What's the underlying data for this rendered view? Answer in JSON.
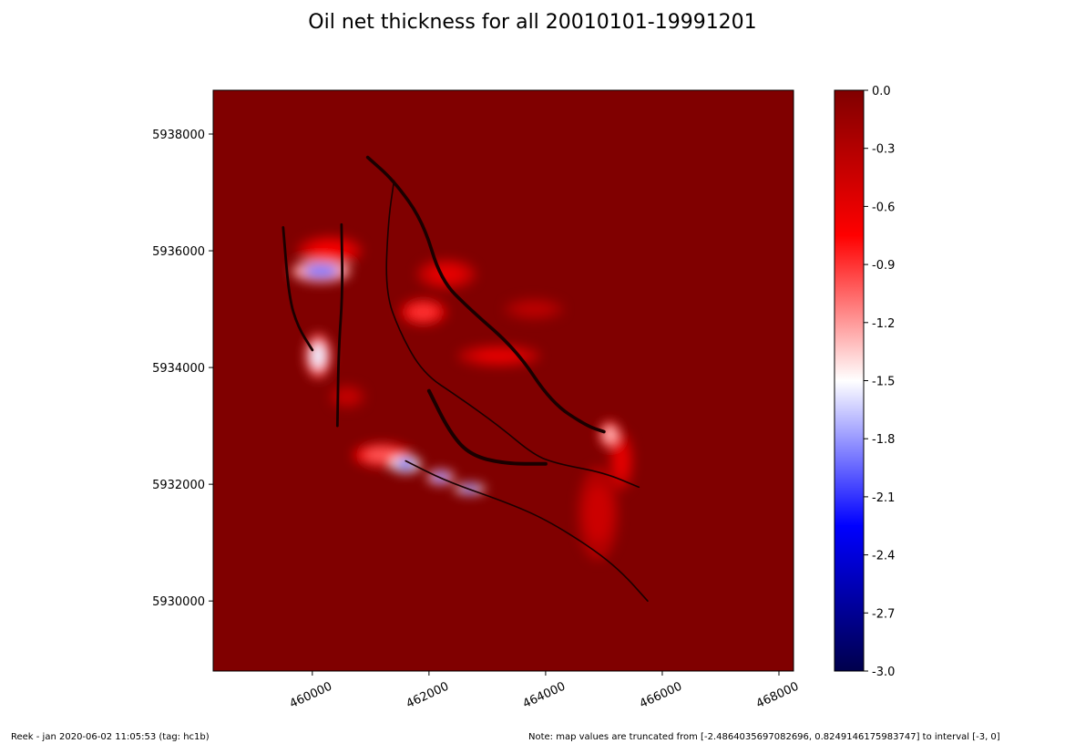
{
  "chart_data": {
    "type": "heatmap",
    "title": "Oil net thickness for all 20010101-19991201",
    "xlabel": "",
    "ylabel": "",
    "xlim": [
      458300,
      468250
    ],
    "ylim": [
      5928800,
      5938750
    ],
    "x_ticks": [
      "460000",
      "462000",
      "464000",
      "466000",
      "468000"
    ],
    "y_ticks": [
      "5938000",
      "5936000",
      "5934000",
      "5932000",
      "5930000"
    ],
    "colorbar": {
      "range": [
        -3.0,
        0.0
      ],
      "colormap": "seismic",
      "ticks": [
        "0.0",
        "-0.3",
        "-0.6",
        "-0.9",
        "-1.2",
        "-1.5",
        "-1.8",
        "-2.1",
        "-2.4",
        "-2.7",
        "-3.0"
      ],
      "colors": [
        "#00004c",
        "#0000ff",
        "#ffffff",
        "#ff0000",
        "#800000"
      ]
    },
    "background_value": 0.0,
    "anomalies": [
      {
        "x": 460150,
        "y": 5935650,
        "rx": 500,
        "ry": 190,
        "value": -1.9
      },
      {
        "x": 460100,
        "y": 5934200,
        "rx": 220,
        "ry": 380,
        "value": -1.55
      },
      {
        "x": 461600,
        "y": 5932340,
        "rx": 260,
        "ry": 140,
        "value": -2.3
      },
      {
        "x": 462200,
        "y": 5932120,
        "rx": 230,
        "ry": 120,
        "value": -2.05
      },
      {
        "x": 462700,
        "y": 5931920,
        "rx": 260,
        "ry": 90,
        "value": -2.2
      },
      {
        "x": 465100,
        "y": 5932850,
        "rx": 180,
        "ry": 230,
        "value": -1.3
      },
      {
        "x": 461900,
        "y": 5934950,
        "rx": 400,
        "ry": 220,
        "value": -0.9
      },
      {
        "x": 463200,
        "y": 5934200,
        "rx": 700,
        "ry": 180,
        "value": -0.6
      },
      {
        "x": 462300,
        "y": 5935600,
        "rx": 500,
        "ry": 250,
        "value": -0.6
      },
      {
        "x": 463800,
        "y": 5935000,
        "rx": 500,
        "ry": 180,
        "value": -0.35
      },
      {
        "x": 461200,
        "y": 5932500,
        "rx": 500,
        "ry": 200,
        "value": -1.0
      },
      {
        "x": 464900,
        "y": 5931500,
        "rx": 350,
        "ry": 800,
        "value": -0.45
      },
      {
        "x": 460600,
        "y": 5933500,
        "rx": 300,
        "ry": 200,
        "value": -0.4
      },
      {
        "x": 460300,
        "y": 5936000,
        "rx": 550,
        "ry": 250,
        "value": -0.7
      },
      {
        "x": 465300,
        "y": 5932400,
        "rx": 200,
        "ry": 500,
        "value": -0.6
      }
    ],
    "faults": [
      {
        "points": [
          [
            460950,
            5937600
          ],
          [
            461400,
            5937200
          ],
          [
            461900,
            5936500
          ],
          [
            462200,
            5935500
          ],
          [
            462700,
            5935000
          ],
          [
            463500,
            5934300
          ],
          [
            464100,
            5933400
          ],
          [
            464700,
            5933000
          ],
          [
            465000,
            5932900
          ]
        ],
        "width": 0.09
      },
      {
        "points": [
          [
            461400,
            5937200
          ],
          [
            461300,
            5936500
          ],
          [
            461250,
            5935300
          ],
          [
            461500,
            5934600
          ],
          [
            461900,
            5933900
          ],
          [
            462500,
            5933500
          ],
          [
            463200,
            5933000
          ],
          [
            463800,
            5932500
          ],
          [
            464200,
            5932350
          ],
          [
            465000,
            5932200
          ],
          [
            465600,
            5931950
          ]
        ],
        "width": 0.04
      },
      {
        "points": [
          [
            462000,
            5933600
          ],
          [
            462350,
            5932900
          ],
          [
            462700,
            5932500
          ],
          [
            463300,
            5932350
          ],
          [
            464000,
            5932350
          ]
        ],
        "width": 0.1
      },
      {
        "points": [
          [
            460500,
            5936450
          ],
          [
            460520,
            5935300
          ],
          [
            460450,
            5934300
          ],
          [
            460430,
            5933000
          ]
        ],
        "width": 0.07
      },
      {
        "points": [
          [
            459500,
            5936400
          ],
          [
            459600,
            5935200
          ],
          [
            459750,
            5934700
          ],
          [
            460000,
            5934300
          ]
        ],
        "width": 0.07
      },
      {
        "points": [
          [
            461600,
            5932400
          ],
          [
            462300,
            5932050
          ],
          [
            463300,
            5931700
          ],
          [
            464000,
            5931400
          ],
          [
            464800,
            5930900
          ],
          [
            465300,
            5930500
          ],
          [
            465750,
            5930000
          ]
        ],
        "width": 0.04
      }
    ]
  },
  "footer": {
    "left": "Reek -  jan 2020-06-02 11:05:53 (tag: hc1b)",
    "right": "Note: map values are truncated from [-2.4864035697082696, 0.8249146175983747] to interval [-3, 0]"
  }
}
